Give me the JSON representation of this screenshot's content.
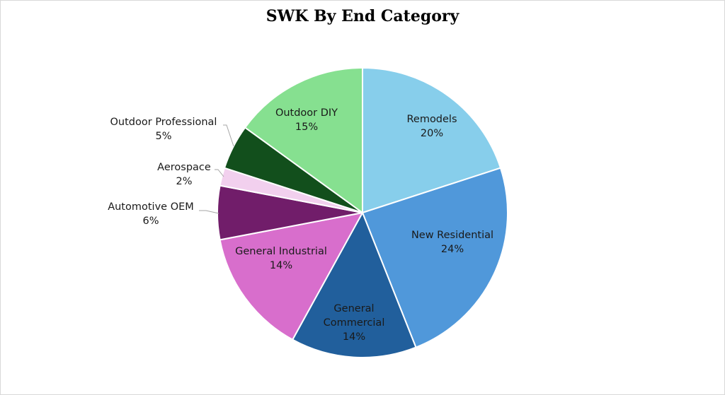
{
  "chart_data": {
    "type": "pie",
    "title": "SWK By End Category",
    "slices": [
      {
        "name": "Remodels",
        "label_lines": [
          "Remodels",
          "20%"
        ],
        "value": 20,
        "color": "#87ceeb"
      },
      {
        "name": "New Residential",
        "label_lines": [
          "New Residential",
          "24%"
        ],
        "value": 24,
        "color": "#5098da"
      },
      {
        "name": "General Commercial",
        "label_lines": [
          "General",
          "Commercial",
          "14%"
        ],
        "value": 14,
        "color": "#215f9c"
      },
      {
        "name": "General Industrial",
        "label_lines": [
          "General Industrial",
          "14%"
        ],
        "value": 14,
        "color": "#d86ecc"
      },
      {
        "name": "Automotive OEM",
        "label_lines": [
          "Automotive OEM",
          "6%"
        ],
        "value": 6,
        "color": "#711d6a"
      },
      {
        "name": "Aerospace",
        "label_lines": [
          "Aerospace",
          "2%"
        ],
        "value": 2,
        "color": "#f2d0ee"
      },
      {
        "name": "Outdoor Professional",
        "label_lines": [
          "Outdoor Professional",
          "5%"
        ],
        "value": 5,
        "color": "#124f1c"
      },
      {
        "name": "Outdoor DIY",
        "label_lines": [
          "Outdoor DIY",
          "15%"
        ],
        "value": 15,
        "color": "#86e090"
      }
    ],
    "legend": "none"
  }
}
